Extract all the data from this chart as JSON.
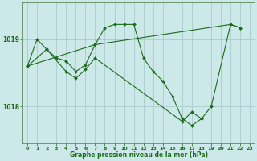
{
  "title": "Graphe pression niveau de la mer (hPa)",
  "bg_color": "#cce8e8",
  "grid_color": "#aacccc",
  "line_color": "#1a6b1a",
  "marker_color": "#1a6b1a",
  "xlim": [
    -0.5,
    23.5
  ],
  "ylim": [
    1017.45,
    1019.55
  ],
  "yticks": [
    1018,
    1019
  ],
  "xticks": [
    0,
    1,
    2,
    3,
    4,
    5,
    6,
    7,
    8,
    9,
    10,
    11,
    12,
    13,
    14,
    15,
    16,
    17,
    18,
    19,
    20,
    21,
    22,
    23
  ],
  "series": [
    {
      "x": [
        0,
        1,
        2,
        3,
        4,
        5,
        6,
        7,
        8,
        9,
        10,
        11,
        12,
        13,
        14,
        15,
        16,
        17,
        18,
        19,
        21,
        22
      ],
      "y": [
        1018.6,
        1019.0,
        1018.85,
        1018.72,
        1018.68,
        1018.52,
        1018.62,
        1018.92,
        1019.17,
        1019.22,
        1019.22,
        1019.22,
        1018.72,
        1018.52,
        1018.38,
        1018.15,
        1017.82,
        1017.72,
        1017.82,
        1018.0,
        1019.22,
        1019.17
      ]
    },
    {
      "x": [
        0,
        2,
        4,
        5,
        6,
        7,
        16,
        17,
        18
      ],
      "y": [
        1018.6,
        1018.85,
        1018.52,
        1018.42,
        1018.55,
        1018.72,
        1017.78,
        1017.92,
        1017.82
      ]
    },
    {
      "x": [
        0,
        7,
        21,
        22
      ],
      "y": [
        1018.6,
        1018.92,
        1019.22,
        1019.17
      ]
    }
  ]
}
